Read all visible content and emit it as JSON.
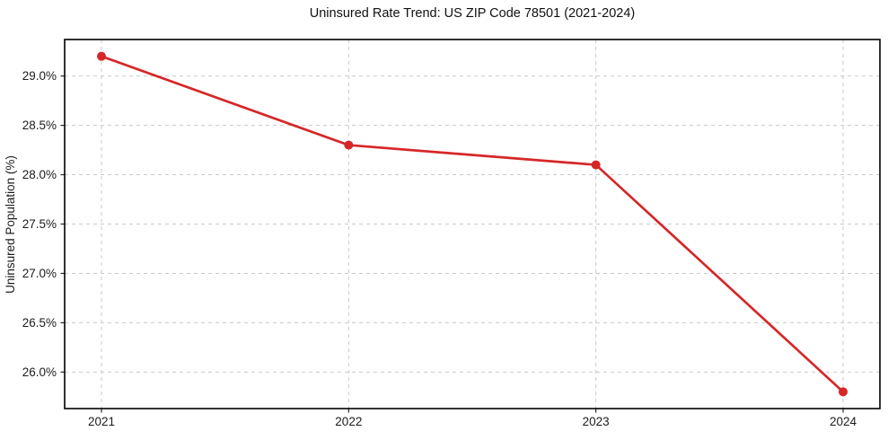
{
  "chart_data": {
    "type": "line",
    "title": "Uninsured Rate Trend: US ZIP Code 78501 (2021-2024)",
    "xlabel": "",
    "ylabel": "Uninsured Population (%)",
    "x": [
      "2021",
      "2022",
      "2023",
      "2024"
    ],
    "series": [
      {
        "name": "Uninsured rate",
        "values": [
          29.2,
          28.3,
          28.1,
          25.8
        ]
      }
    ],
    "ylim": [
      25.63,
      29.37
    ],
    "yticks": [
      26.0,
      26.5,
      27.0,
      27.5,
      28.0,
      28.5,
      29.0
    ],
    "ytick_labels": [
      "26.0%",
      "26.5%",
      "27.0%",
      "27.5%",
      "28.0%",
      "28.5%",
      "29.0%"
    ],
    "xtick_labels": [
      "2021",
      "2022",
      "2023",
      "2024"
    ],
    "grid": true,
    "grid_style": "dashed",
    "legend": "none",
    "colors": {
      "line": "#d62728",
      "marker": "#d62728",
      "grid": "#c9c9c9",
      "spine": "#000000",
      "tick": "#262626",
      "text": "#1c1c1c",
      "background": "#ffffff"
    }
  }
}
